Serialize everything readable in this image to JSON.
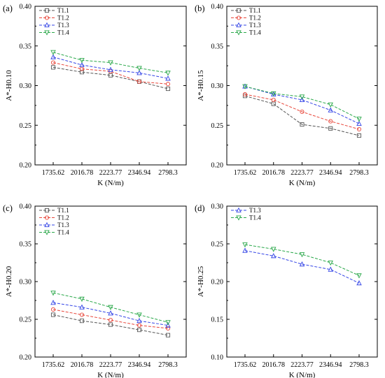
{
  "chart_data": [
    {
      "type": "line",
      "panel_label": "(a)",
      "categories": [
        "1735.62",
        "2016.78",
        "2223.77",
        "2346.94",
        "2798.3"
      ],
      "xlabel": "K (N/m)",
      "ylabel": "A*-H0.10",
      "ylim": [
        0.2,
        0.4
      ],
      "yticks": [
        "0.20",
        "0.25",
        "0.30",
        "0.35",
        "0.40"
      ],
      "legend_position": "top-left",
      "series": [
        {
          "name": "T1.1",
          "color": "#555555",
          "marker": "square",
          "values": [
            0.323,
            0.317,
            0.313,
            0.305,
            0.296
          ]
        },
        {
          "name": "T1.2",
          "color": "#e8463a",
          "marker": "circle",
          "values": [
            0.329,
            0.321,
            0.318,
            0.305,
            0.302
          ]
        },
        {
          "name": "T1.3",
          "color": "#3344e6",
          "marker": "triangle-up",
          "values": [
            0.336,
            0.326,
            0.32,
            0.316,
            0.309
          ]
        },
        {
          "name": "T1.4",
          "color": "#2aa84a",
          "marker": "triangle-down",
          "values": [
            0.342,
            0.332,
            0.329,
            0.322,
            0.316
          ]
        }
      ]
    },
    {
      "type": "line",
      "panel_label": "(b)",
      "categories": [
        "1735.62",
        "2016.78",
        "2223.77",
        "2346.94",
        "2798.3"
      ],
      "xlabel": "K (N/m)",
      "ylabel": "A*-H0.15",
      "ylim": [
        0.2,
        0.4
      ],
      "yticks": [
        "0.20",
        "0.25",
        "0.30",
        "0.35",
        "0.40"
      ],
      "legend_position": "top-left",
      "series": [
        {
          "name": "T1.1",
          "color": "#555555",
          "marker": "square",
          "values": [
            0.287,
            0.277,
            0.251,
            0.246,
            0.237
          ]
        },
        {
          "name": "T1.2",
          "color": "#e8463a",
          "marker": "circle",
          "values": [
            0.289,
            0.282,
            0.267,
            0.255,
            0.245
          ]
        },
        {
          "name": "T1.3",
          "color": "#3344e6",
          "marker": "triangle-up",
          "values": [
            0.299,
            0.289,
            0.282,
            0.269,
            0.252
          ]
        },
        {
          "name": "T1.4",
          "color": "#2aa84a",
          "marker": "triangle-down",
          "values": [
            0.299,
            0.29,
            0.286,
            0.276,
            0.258
          ]
        }
      ]
    },
    {
      "type": "line",
      "panel_label": "(c)",
      "categories": [
        "1735.62",
        "2016.78",
        "2223.77",
        "2346.94",
        "2798.3"
      ],
      "xlabel": "K (N/m)",
      "ylabel": "A*-H0.20",
      "ylim": [
        0.2,
        0.4
      ],
      "yticks": [
        "0.20",
        "0.25",
        "0.30",
        "0.35",
        "0.40"
      ],
      "legend_position": "top-left",
      "series": [
        {
          "name": "T1.1",
          "color": "#555555",
          "marker": "square",
          "values": [
            0.256,
            0.248,
            0.243,
            0.236,
            0.229
          ]
        },
        {
          "name": "T1.2",
          "color": "#e8463a",
          "marker": "circle",
          "values": [
            0.263,
            0.256,
            0.249,
            0.242,
            0.238
          ]
        },
        {
          "name": "T1.3",
          "color": "#3344e6",
          "marker": "triangle-up",
          "values": [
            0.272,
            0.266,
            0.258,
            0.248,
            0.242
          ]
        },
        {
          "name": "T1.4",
          "color": "#2aa84a",
          "marker": "triangle-down",
          "values": [
            0.285,
            0.277,
            0.266,
            0.256,
            0.246
          ]
        }
      ]
    },
    {
      "type": "line",
      "panel_label": "(d)",
      "categories": [
        "1735.62",
        "2016.78",
        "2223.77",
        "2346.94",
        "2798.3"
      ],
      "xlabel": "K (N/m)",
      "ylabel": "A*-H0.25",
      "ylim": [
        0.1,
        0.3
      ],
      "yticks": [
        "0.10",
        "0.15",
        "0.20",
        "0.25",
        "0.30"
      ],
      "legend_position": "top-left",
      "series": [
        {
          "name": "T1.3",
          "color": "#3344e6",
          "marker": "triangle-up",
          "values": [
            0.241,
            0.234,
            0.223,
            0.216,
            0.198
          ]
        },
        {
          "name": "T1.4",
          "color": "#2aa84a",
          "marker": "triangle-down",
          "values": [
            0.249,
            0.243,
            0.236,
            0.225,
            0.208
          ]
        }
      ]
    }
  ]
}
